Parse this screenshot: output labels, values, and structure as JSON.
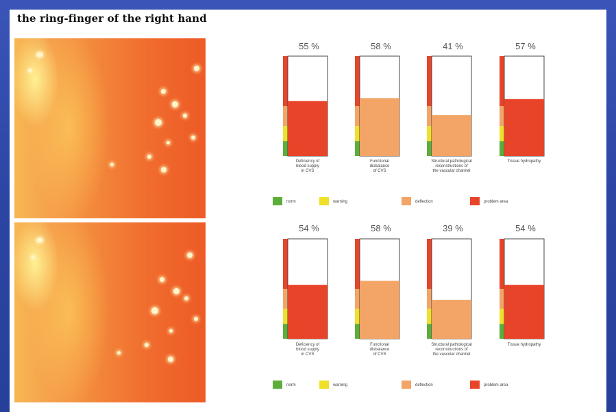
{
  "title": "the ring-finger of the right hand",
  "colors": {
    "norm": "#5cae3c",
    "warning": "#f0e02a",
    "deflection": "#f2a566",
    "problem": "#e8442a"
  },
  "legend": [
    {
      "key": "norm",
      "label": "norm"
    },
    {
      "key": "warning",
      "label": "warning"
    },
    {
      "key": "deflection",
      "label": "deflection"
    },
    {
      "key": "problem",
      "label": "problem area"
    }
  ],
  "chart_data": [
    {
      "type": "bar",
      "categories": [
        "Deficiency of blood supply in CVS",
        "Functional disbalance of CVS",
        "Structural pathological reconstructions of the vascular channel",
        "Tissue hydropathy"
      ],
      "values": [
        55,
        58,
        41,
        57
      ],
      "value_labels": [
        "55 %",
        "58 %",
        "41 %",
        "57 %"
      ],
      "bar_zone": [
        "problem",
        "deflection",
        "deflection",
        "problem"
      ],
      "ylim": [
        0,
        100
      ]
    },
    {
      "type": "bar",
      "categories": [
        "Deficiency of blood supply in CVS",
        "Functional disbalance of CVS",
        "Structural pathological reconstructions of the vascular channel",
        "Tissue hydropathy"
      ],
      "values": [
        54,
        58,
        39,
        54
      ],
      "value_labels": [
        "54 %",
        "58 %",
        "39 %",
        "54 %"
      ],
      "bar_zone": [
        "problem",
        "deflection",
        "deflection",
        "problem"
      ],
      "ylim": [
        0,
        100
      ]
    }
  ]
}
